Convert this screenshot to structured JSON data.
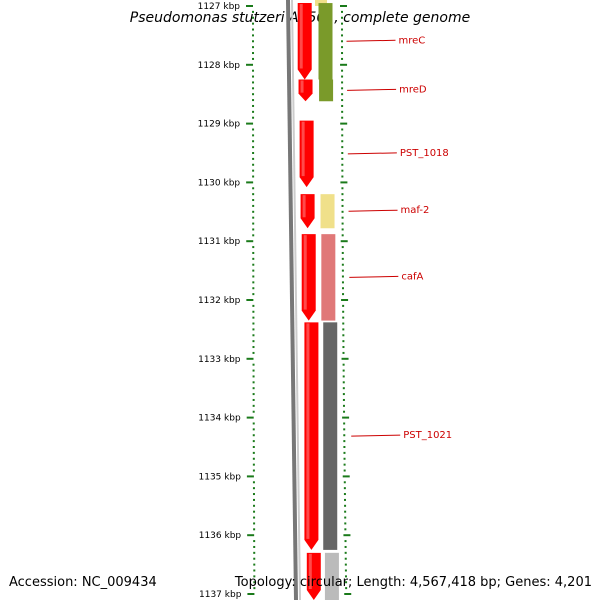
{
  "title": "Pseudomonas stutzeri A1501, complete genome",
  "footer": {
    "accession": "Accession: NC_009434",
    "topology": "Topology: circular; Length: 4,567,418 bp; Genes: 4,201"
  },
  "axis": {
    "unit": "kbp",
    "ticks": [
      {
        "label": "1127 kbp",
        "kbp": 1127
      },
      {
        "label": "1128 kbp",
        "kbp": 1128
      },
      {
        "label": "1129 kbp",
        "kbp": 1129
      },
      {
        "label": "1130 kbp",
        "kbp": 1130
      },
      {
        "label": "1131 kbp",
        "kbp": 1131
      },
      {
        "label": "1132 kbp",
        "kbp": 1132
      },
      {
        "label": "1133 kbp",
        "kbp": 1133
      },
      {
        "label": "1134 kbp",
        "kbp": 1134
      },
      {
        "label": "1135 kbp",
        "kbp": 1135
      },
      {
        "label": "1136 kbp",
        "kbp": 1136
      },
      {
        "label": "1137 kbp",
        "kbp": 1137
      }
    ],
    "tick_color": "#1a7a1a"
  },
  "colors": {
    "forward_strand": "#ff0000",
    "backbone": "#777777",
    "label_color": "#cc0000"
  },
  "genes": [
    {
      "name": "mreC",
      "start_kbp": 1126.95,
      "end_kbp": 1128.25,
      "category_color": "#7a9a2a"
    },
    {
      "name": "mreD",
      "start_kbp": 1128.25,
      "end_kbp": 1128.62,
      "category_color": "#7a9a2a"
    },
    {
      "name": "PST_1018",
      "start_kbp": 1128.95,
      "end_kbp": 1130.08,
      "category_color": null
    },
    {
      "name": "maf-2",
      "start_kbp": 1130.2,
      "end_kbp": 1130.78,
      "category_color": "#f0e08a"
    },
    {
      "name": "cafA",
      "start_kbp": 1130.88,
      "end_kbp": 1132.35,
      "category_color": "#e07878"
    },
    {
      "name": "PST_1021",
      "start_kbp": 1132.38,
      "end_kbp": 1136.25,
      "category_color": "#666666"
    },
    {
      "name": "",
      "start_kbp": 1136.3,
      "end_kbp": 1137.2,
      "category_color": "#bbbbbb"
    }
  ],
  "top_stub_color": "#f0e08a"
}
